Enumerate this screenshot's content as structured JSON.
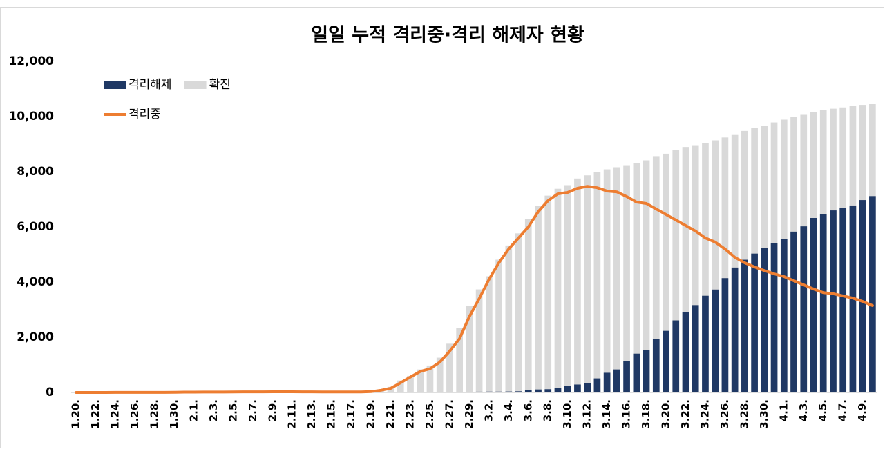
{
  "chart_data": {
    "type": "bar",
    "title": "일일 누적 격리중·격리 해제자 현황",
    "categories": [
      "1.20.",
      null,
      "1.22.",
      null,
      "1.24.",
      null,
      "1.26.",
      null,
      "1.28.",
      null,
      "1.30.",
      null,
      "2.1.",
      null,
      "2.3.",
      null,
      "2.5.",
      null,
      "2.7.",
      null,
      "2.9.",
      null,
      "2.11.",
      null,
      "2.13.",
      null,
      "2.15.",
      null,
      "2.17.",
      null,
      "2.19.",
      null,
      "2.21.",
      null,
      "2.23.",
      null,
      "2.25.",
      null,
      "2.27.",
      null,
      "2.29.",
      null,
      "3.2.",
      null,
      "3.4.",
      null,
      "3.6.",
      null,
      "3.8.",
      null,
      "3.10.",
      null,
      "3.12.",
      null,
      "3.14.",
      null,
      "3.16.",
      null,
      "3.18.",
      null,
      "3.20.",
      null,
      "3.22.",
      null,
      "3.24.",
      null,
      "3.26.",
      null,
      "3.28.",
      null,
      "3.30.",
      null,
      "4.1.",
      null,
      "4.3.",
      null,
      "4.5.",
      null,
      "4.7.",
      null,
      "4.9.",
      null
    ],
    "series": [
      {
        "name": "격리해제",
        "color": "#1f3864",
        "values": [
          0,
          0,
          0,
          0,
          0,
          0,
          0,
          0,
          0,
          0,
          0,
          0,
          0,
          0,
          0,
          0,
          1,
          2,
          2,
          3,
          3,
          3,
          4,
          7,
          7,
          7,
          7,
          9,
          9,
          10,
          10,
          16,
          16,
          16,
          16,
          18,
          18,
          22,
          22,
          22,
          22,
          27,
          30,
          30,
          34,
          41,
          88,
          108,
          118,
          166,
          247,
          288,
          333,
          510,
          714,
          834,
          1137,
          1407,
          1540,
          1947,
          2233,
          2612,
          2909,
          3166,
          3507,
          3730,
          4144,
          4528,
          4811,
          5033,
          5228,
          5408,
          5567,
          5828,
          6021,
          6325,
          6463,
          6598,
          6694,
          6776,
          6973,
          7117
        ]
      },
      {
        "name": "확진",
        "color": "#d9d9d9",
        "values": [
          1,
          1,
          1,
          1,
          2,
          2,
          3,
          4,
          4,
          4,
          6,
          11,
          12,
          15,
          15,
          16,
          19,
          23,
          24,
          24,
          27,
          27,
          28,
          28,
          28,
          28,
          28,
          29,
          30,
          31,
          51,
          104,
          204,
          433,
          602,
          833,
          977,
          1261,
          1766,
          2337,
          3150,
          3736,
          4212,
          4812,
          5328,
          5766,
          6284,
          6767,
          7134,
          7382,
          7513,
          7755,
          7869,
          7979,
          8086,
          8162,
          8236,
          8320,
          8413,
          8565,
          8652,
          8799,
          8897,
          8961,
          9037,
          9137,
          9241,
          9332,
          9478,
          9583,
          9661,
          9786,
          9887,
          9976,
          10062,
          10156,
          10237,
          10284,
          10331,
          10384,
          10423,
          10450
        ]
      },
      {
        "name": "격리중",
        "color": "#ed7d31",
        "type": "line",
        "values": [
          1,
          1,
          1,
          1,
          2,
          2,
          3,
          4,
          4,
          4,
          6,
          11,
          12,
          15,
          15,
          16,
          19,
          22,
          23,
          22,
          24,
          24,
          24,
          21,
          21,
          20,
          19,
          19,
          18,
          19,
          30,
          80,
          150,
          350,
          560,
          760,
          860,
          1100,
          1500,
          1950,
          2750,
          3400,
          4100,
          4700,
          5200,
          5600,
          6000,
          6550,
          6950,
          7200,
          7250,
          7400,
          7470,
          7420,
          7300,
          7270,
          7100,
          6900,
          6850,
          6650,
          6450,
          6250,
          6050,
          5850,
          5600,
          5450,
          5200,
          4900,
          4700,
          4550,
          4420,
          4300,
          4200,
          4050,
          3900,
          3750,
          3620,
          3580,
          3500,
          3420,
          3300,
          3150
        ]
      }
    ],
    "ylim": [
      0,
      12000
    ],
    "yticks": [
      0,
      {
        "value": 2000,
        "label": "2,000"
      },
      {
        "value": 4000,
        "label": "4,000"
      },
      {
        "value": 6000,
        "label": "6,000"
      },
      {
        "value": 8000,
        "label": "8,000"
      },
      {
        "value": 10000,
        "label": "10,000"
      },
      {
        "value": 12000,
        "label": "12,000"
      }
    ],
    "legend": "upper left"
  }
}
